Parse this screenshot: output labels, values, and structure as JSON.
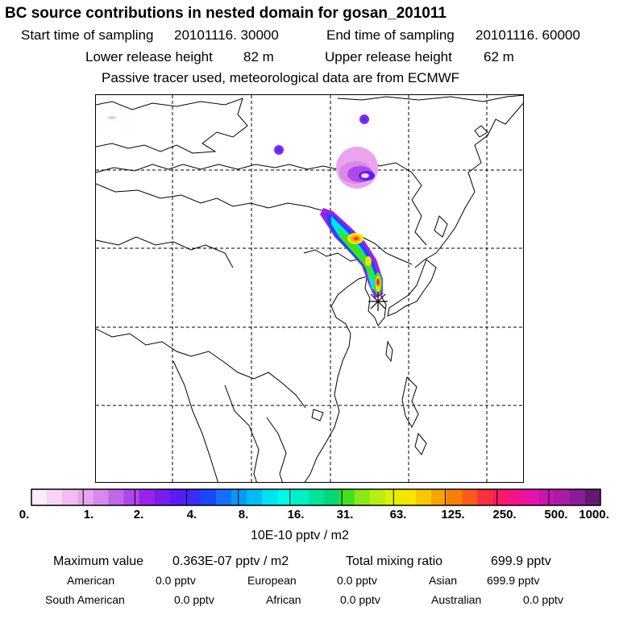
{
  "title": "BC  source contributions in nested domain for gosan_201011",
  "header": {
    "start_label": "Start time of sampling",
    "start_value": "20101116. 30000",
    "end_label": "End time of sampling",
    "end_value": "20101116. 60000",
    "lower_label": "Lower release height",
    "lower_value": "82 m",
    "upper_label": "Upper release height",
    "upper_value": "62 m",
    "note": "Passive tracer used, meteorological data are from ECMWF"
  },
  "colorbar": {
    "colors": [
      "#fcecfc",
      "#f8d4f8",
      "#f2bcf2",
      "#eaa4ee",
      "#d888ea",
      "#c266ea",
      "#ae46ea",
      "#9a22ea",
      "#7a1cea",
      "#5a1cf2",
      "#3a2cfa",
      "#1e46fa",
      "#1470fa",
      "#0a98f6",
      "#00bcf4",
      "#00e2f0",
      "#00f8e6",
      "#00f0c2",
      "#00e49c",
      "#00d878",
      "#40e020",
      "#8ae818",
      "#b6ee18",
      "#e0f000",
      "#f8e400",
      "#f8c800",
      "#f8a400",
      "#f88000",
      "#f85c1c",
      "#f83040",
      "#f81c64",
      "#f2148c",
      "#e414a8",
      "#c814b0",
      "#a81ca8",
      "#8a1c98",
      "#641a72"
    ],
    "tick_labels": [
      "0.",
      "1.",
      "2.",
      "4.",
      "8.",
      "16.",
      "31.",
      "63.",
      "125.",
      "250.",
      "500.",
      "1000."
    ],
    "unit": "10E-10 pptv / m2"
  },
  "summary": {
    "max_label": "Maximum value",
    "max_value": "0.363E-07 pptv / m2",
    "total_label": "Total mixing ratio",
    "total_value": "699.9 pptv",
    "regions": [
      {
        "name": "American",
        "value": "0.0 pptv"
      },
      {
        "name": "European",
        "value": "0.0 pptv"
      },
      {
        "name": "Asian",
        "value": "699.9 pptv"
      },
      {
        "name": "South American",
        "value": "0.0 pptv"
      },
      {
        "name": "African",
        "value": "0.0 pptv"
      },
      {
        "name": "Australian",
        "value": "0.0 pptv"
      }
    ]
  },
  "map": {
    "receptor_marker": "receptor-star-icon",
    "plume_colors": {
      "violet": "#c066ea",
      "purple": "#9a22ea",
      "blue": "#1e46fa",
      "cyan": "#00e2f0",
      "green": "#40e020",
      "yellow": "#f8e400",
      "orange": "#f8a400",
      "red": "#f83040",
      "magenta": "#f2148c"
    }
  }
}
